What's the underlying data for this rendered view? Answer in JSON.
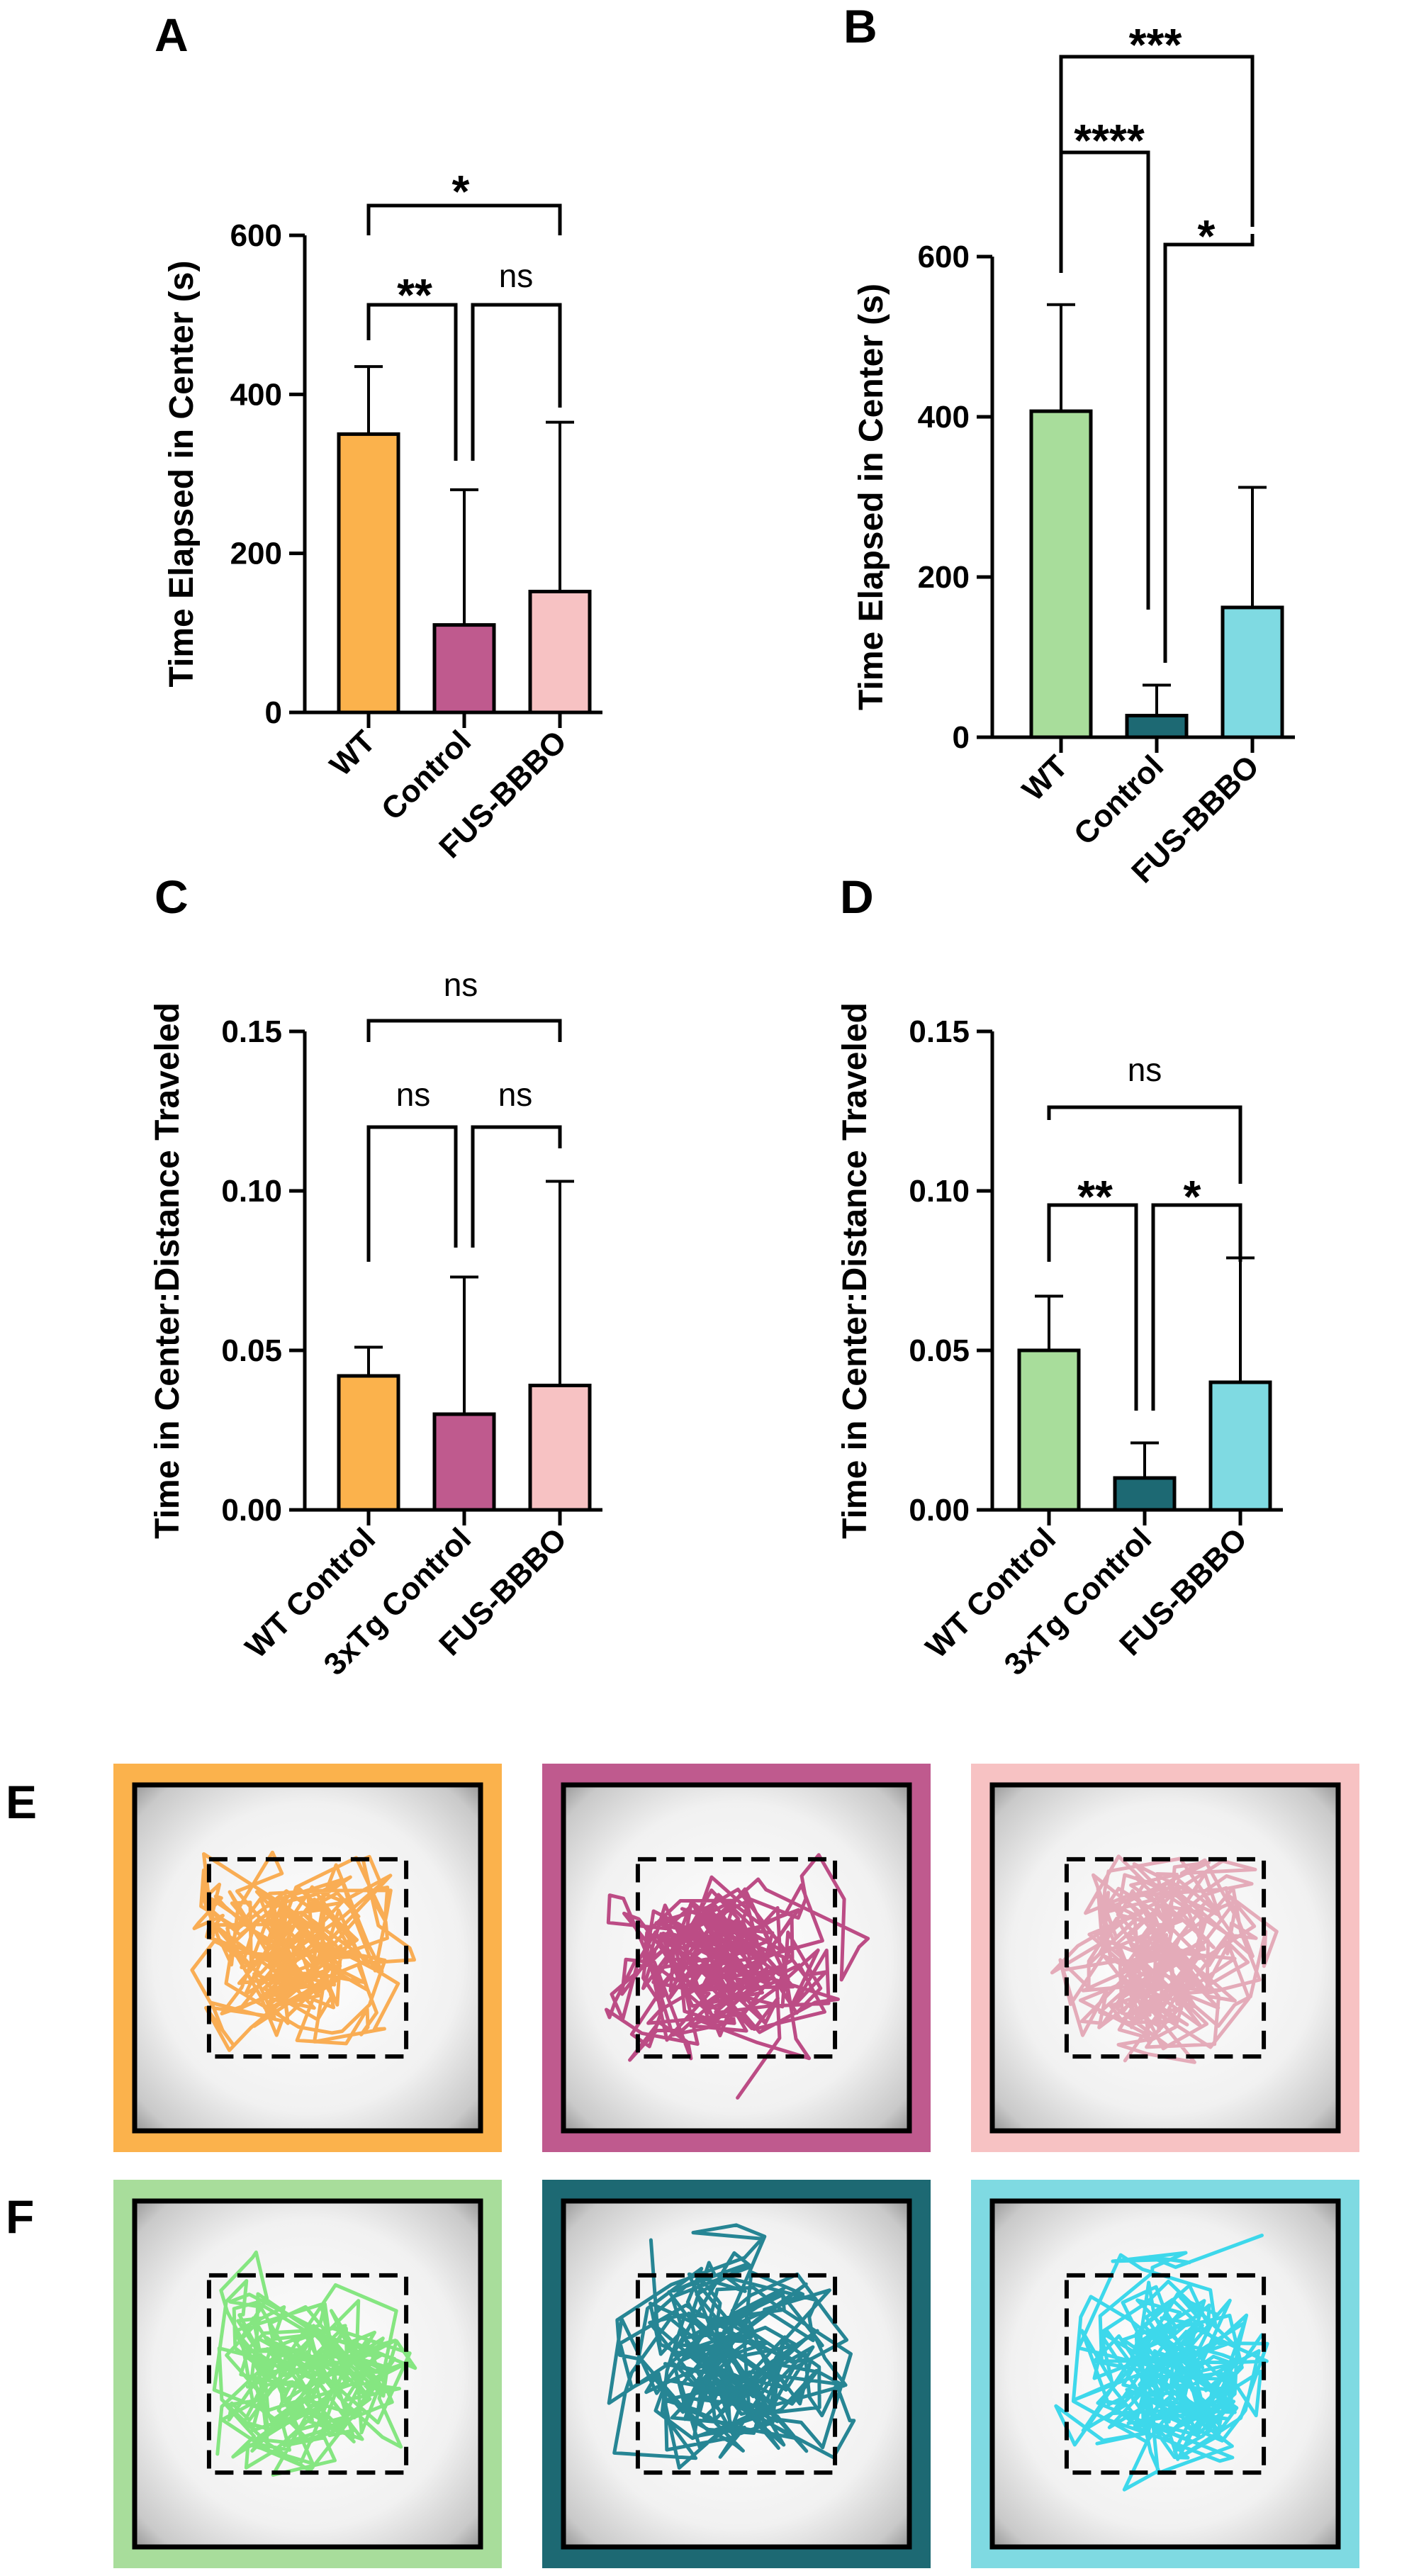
{
  "colors": {
    "wt_orange": "#FBB24C",
    "control_magenta": "#BF5A8E",
    "fus_pink": "#F7C2C3",
    "wt_green": "#A8DD9B",
    "control_teal": "#1D6973",
    "fus_cyan": "#7FDAE2",
    "track_orange": "#F9A94B",
    "track_magenta": "#B8427E",
    "track_pink": "#E3A7B5",
    "track_green": "#7EE57A",
    "track_teal": "#1A7E8E",
    "track_cyan": "#33D6EA"
  },
  "chart_data": [
    {
      "panel": "A",
      "type": "bar",
      "ylabel": "Time Elapsed in Center (s)",
      "ylim": [
        0,
        600
      ],
      "yticks": [
        "0",
        "200",
        "400",
        "600"
      ],
      "categories": [
        "WT",
        "Control",
        "FUS-BBBO"
      ],
      "values": [
        350,
        110,
        152
      ],
      "error_upper": [
        435,
        280,
        365
      ],
      "bar_colors": [
        "#FBB24C",
        "#BF5A8E",
        "#F7C2C3"
      ],
      "comparisons": [
        {
          "between": [
            "WT",
            "FUS-BBBO"
          ],
          "label": "*"
        },
        {
          "between": [
            "WT",
            "Control"
          ],
          "label": "**"
        },
        {
          "between": [
            "Control",
            "FUS-BBBO"
          ],
          "label": "ns"
        }
      ]
    },
    {
      "panel": "B",
      "type": "bar",
      "ylabel": "Time Elapsed in Center (s)",
      "ylim": [
        0,
        600
      ],
      "yticks": [
        "0",
        "200",
        "400",
        "600"
      ],
      "categories": [
        "WT",
        "Control",
        "FUS-BBBO"
      ],
      "values": [
        407,
        27,
        162
      ],
      "error_upper": [
        540,
        65,
        312
      ],
      "bar_colors": [
        "#A8DD9B",
        "#1D6973",
        "#7FDAE2"
      ],
      "comparisons": [
        {
          "between": [
            "WT",
            "FUS-BBBO"
          ],
          "label": "***"
        },
        {
          "between": [
            "WT",
            "Control"
          ],
          "label": "****"
        },
        {
          "between": [
            "Control",
            "FUS-BBBO"
          ],
          "label": "*"
        }
      ]
    },
    {
      "panel": "C",
      "type": "bar",
      "ylabel": "Time in Center:Distance Traveled",
      "ylim": [
        0,
        0.15
      ],
      "yticks": [
        "0.00",
        "0.05",
        "0.10",
        "0.15"
      ],
      "categories": [
        "WT Control",
        "3xTg Control",
        "FUS-BBBO"
      ],
      "values": [
        0.042,
        0.03,
        0.039
      ],
      "error_upper": [
        0.051,
        0.073,
        0.103
      ],
      "bar_colors": [
        "#FBB24C",
        "#BF5A8E",
        "#F7C2C3"
      ],
      "comparisons": [
        {
          "between": [
            "WT Control",
            "FUS-BBBO"
          ],
          "label": "ns"
        },
        {
          "between": [
            "WT Control",
            "3xTg Control"
          ],
          "label": "ns"
        },
        {
          "between": [
            "3xTg Control",
            "FUS-BBBO"
          ],
          "label": "ns"
        }
      ]
    },
    {
      "panel": "D",
      "type": "bar",
      "ylabel": "Time in Center:Distance Traveled",
      "ylim": [
        0,
        0.15
      ],
      "yticks": [
        "0.00",
        "0.05",
        "0.10",
        "0.15"
      ],
      "categories": [
        "WT Control",
        "3xTg Control",
        "FUS-BBBO"
      ],
      "values": [
        0.05,
        0.01,
        0.04
      ],
      "error_upper": [
        0.067,
        0.021,
        0.079
      ],
      "bar_colors": [
        "#A8DD9B",
        "#1D6973",
        "#7FDAE2"
      ],
      "comparisons": [
        {
          "between": [
            "WT Control",
            "FUS-BBBO"
          ],
          "label": "ns"
        },
        {
          "between": [
            "WT Control",
            "3xTg Control"
          ],
          "label": "**"
        },
        {
          "between": [
            "3xTg Control",
            "FUS-BBBO"
          ],
          "label": "*"
        }
      ]
    }
  ],
  "track_panels": [
    {
      "panel": "E",
      "frames": [
        {
          "border": "#FBB24C",
          "track": "#F9A94B"
        },
        {
          "border": "#BF5A8E",
          "track": "#B8427E"
        },
        {
          "border": "#F7C2C3",
          "track": "#E3A7B5"
        }
      ]
    },
    {
      "panel": "F",
      "frames": [
        {
          "border": "#A8DD9B",
          "track": "#7EE57A"
        },
        {
          "border": "#1D6973",
          "track": "#1A7E8E"
        },
        {
          "border": "#7FDAE2",
          "track": "#33D6EA"
        }
      ]
    }
  ]
}
